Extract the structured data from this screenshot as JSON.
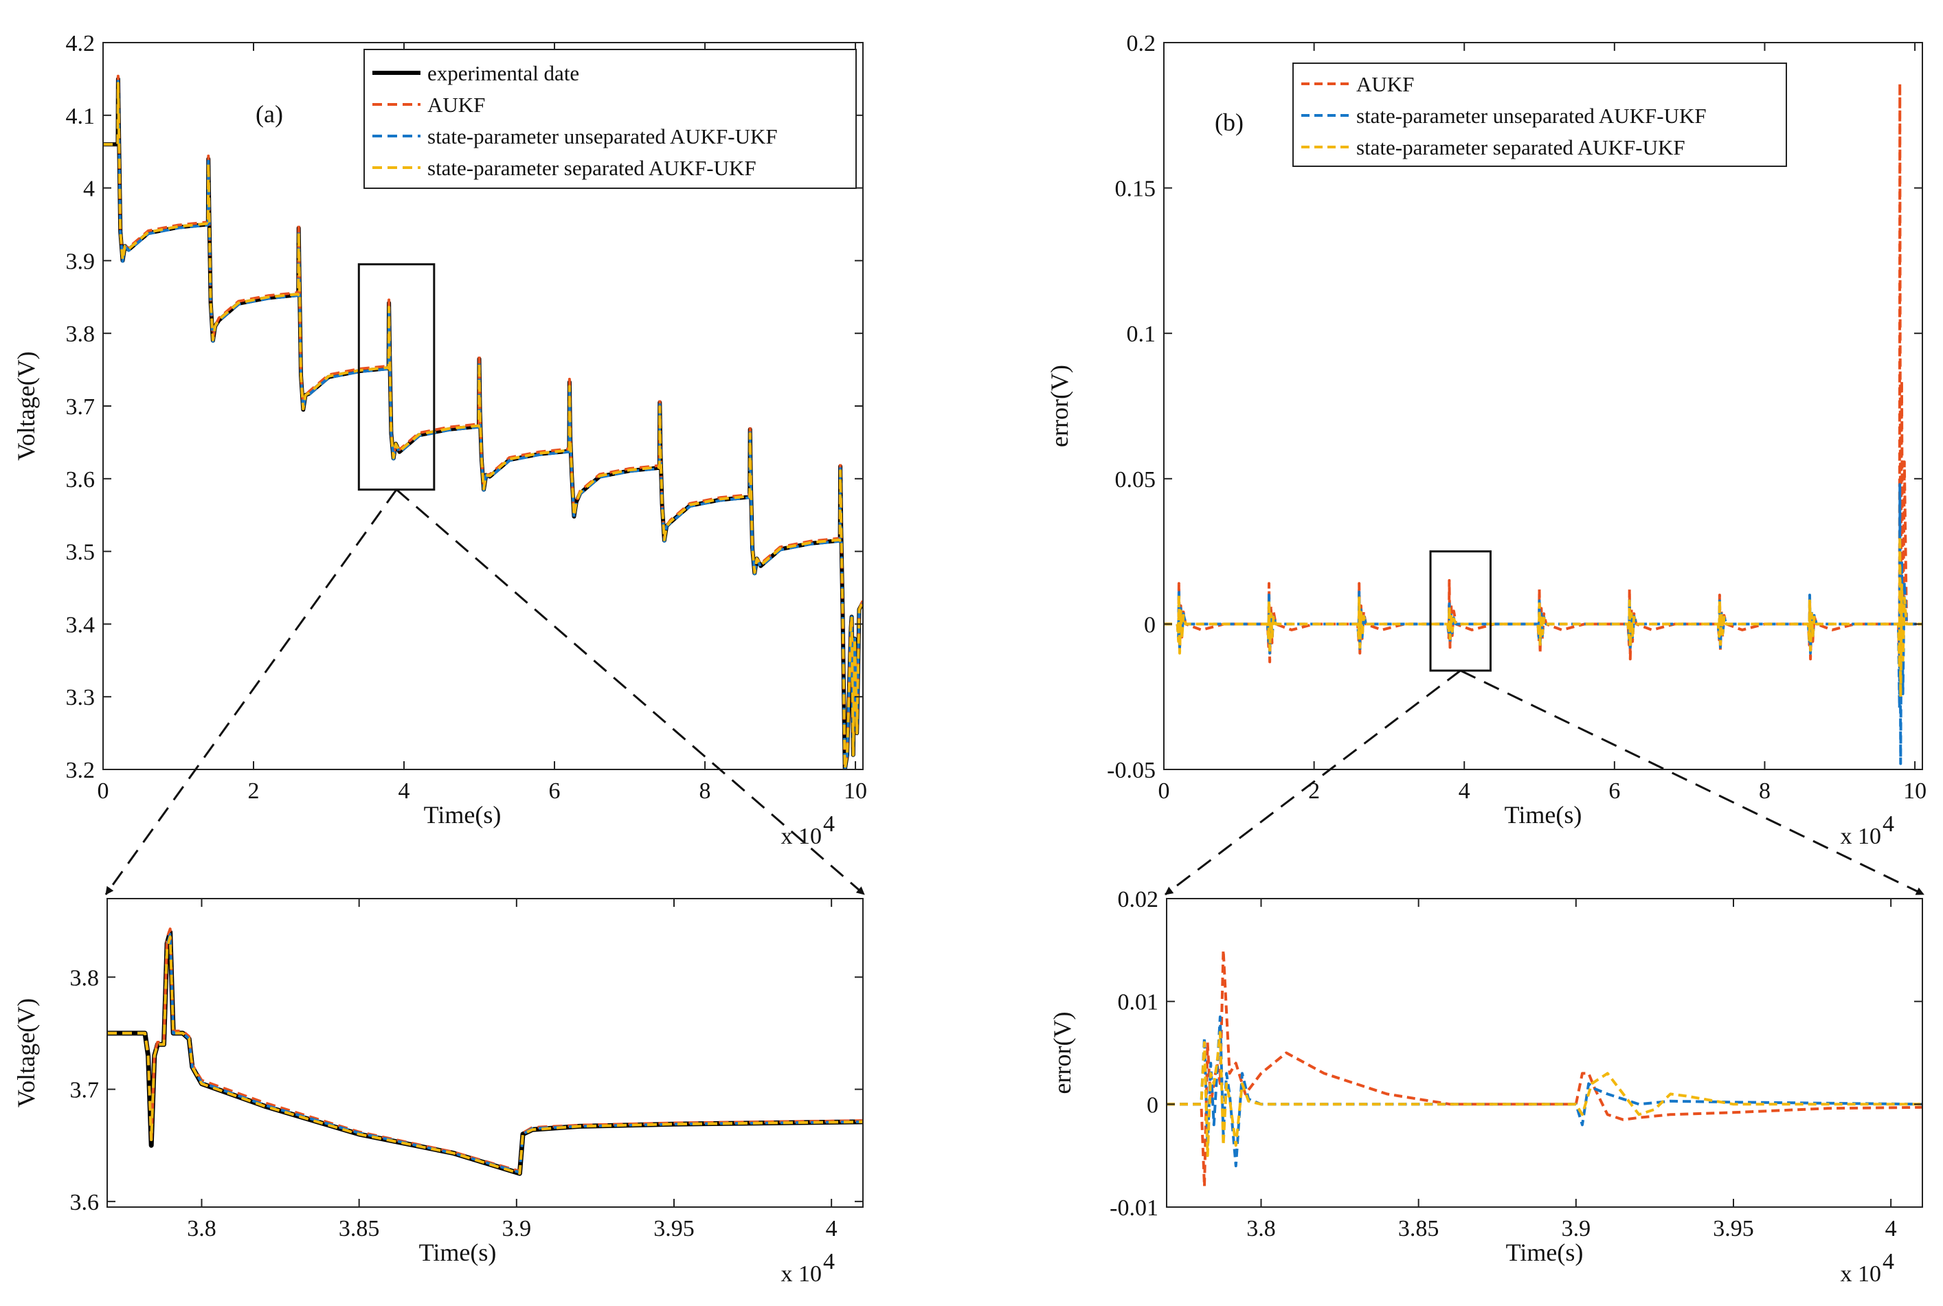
{
  "figure": {
    "panels": {
      "a": "(a)",
      "b": "(b)"
    },
    "exponent": "x 10",
    "exponent_power": "4"
  },
  "colors": {
    "experimental": "#000000",
    "aukf": "#e8501e",
    "unseparated": "#1677c8",
    "separated": "#f2b70d"
  },
  "chart_data": [
    {
      "id": "a-main",
      "type": "line",
      "panel": "(a)",
      "xlabel": "Time(s)",
      "ylabel": "Voltage(V)",
      "xlim": [
        0,
        10.1
      ],
      "ylim": [
        3.2,
        4.2
      ],
      "xticks": [
        0,
        2,
        4,
        6,
        8,
        10
      ],
      "yticks": [
        3.2,
        3.3,
        3.4,
        3.5,
        3.6,
        3.7,
        3.8,
        3.9,
        4.0,
        4.1,
        4.2
      ],
      "ytick_labels": [
        "3.2",
        "3.3",
        "3.4",
        "3.5",
        "3.6",
        "3.7",
        "3.8",
        "3.9",
        "4",
        "4.1",
        "4.2"
      ],
      "x_scale_note": "x 10^4",
      "legend": [
        "experimental date",
        "AUKF",
        "state-parameter unseparated AUKF-UKF",
        "state-parameter separated AUKF-UKF"
      ],
      "legend_position": "top-right",
      "zoom_box": {
        "x": [
          3.4,
          4.4
        ],
        "y": [
          3.585,
          3.895
        ]
      },
      "pulses": [
        {
          "t": 0.2,
          "v_before": 4.06,
          "peak": 4.15,
          "dip": 3.9,
          "v_after": 3.95
        },
        {
          "t": 1.4,
          "v_before": 3.95,
          "peak": 4.04,
          "dip": 3.79,
          "v_after": 3.853
        },
        {
          "t": 2.6,
          "v_before": 3.853,
          "peak": 3.945,
          "dip": 3.695,
          "v_after": 3.752
        },
        {
          "t": 3.8,
          "v_before": 3.752,
          "peak": 3.842,
          "dip": 3.628,
          "v_after": 3.672
        },
        {
          "t": 5.0,
          "v_before": 3.672,
          "peak": 3.765,
          "dip": 3.585,
          "v_after": 3.638
        },
        {
          "t": 6.2,
          "v_before": 3.638,
          "peak": 3.733,
          "dip": 3.548,
          "v_after": 3.615
        },
        {
          "t": 7.4,
          "v_before": 3.615,
          "peak": 3.705,
          "dip": 3.515,
          "v_after": 3.575
        },
        {
          "t": 8.6,
          "v_before": 3.575,
          "peak": 3.668,
          "dip": 3.47,
          "v_after": 3.515
        },
        {
          "t": 9.8,
          "v_before": 3.515,
          "peak": 3.617,
          "dip": 3.2,
          "v_after": 3.43
        }
      ],
      "end_point": {
        "t": 10.1,
        "v": 3.43
      }
    },
    {
      "id": "b-main",
      "type": "line",
      "panel": "(b)",
      "xlabel": "Time(s)",
      "ylabel": "error(V)",
      "xlim": [
        0,
        10.1
      ],
      "ylim": [
        -0.05,
        0.2
      ],
      "xticks": [
        0,
        2,
        4,
        6,
        8,
        10
      ],
      "yticks": [
        -0.05,
        0,
        0.05,
        0.1,
        0.15,
        0.2
      ],
      "ytick_labels": [
        "-0.05",
        "0",
        "0.05",
        "0.1",
        "0.15",
        "0.2"
      ],
      "x_scale_note": "x 10^4",
      "legend": [
        "AUKF",
        "state-parameter unseparated AUKF-UKF",
        "state-parameter separated AUKF-UKF"
      ],
      "legend_position": "top-left",
      "zoom_box": {
        "x": [
          3.55,
          4.35
        ],
        "y": [
          -0.016,
          0.025
        ]
      },
      "error_spikes": [
        {
          "t": 0.2,
          "aukf": [
            0.014,
            -0.009
          ],
          "unsep": [
            0.012,
            -0.008
          ],
          "sep": [
            0.01,
            -0.01
          ]
        },
        {
          "t": 1.4,
          "aukf": [
            0.014,
            -0.013
          ],
          "unsep": [
            0.01,
            -0.01
          ],
          "sep": [
            0.008,
            -0.009
          ]
        },
        {
          "t": 2.6,
          "aukf": [
            0.014,
            -0.01
          ],
          "unsep": [
            0.011,
            -0.009
          ],
          "sep": [
            0.009,
            -0.008
          ]
        },
        {
          "t": 3.8,
          "aukf": [
            0.015,
            -0.008
          ],
          "unsep": [
            0.007,
            -0.006
          ],
          "sep": [
            0.006,
            -0.005
          ]
        },
        {
          "t": 5.0,
          "aukf": [
            0.012,
            -0.01
          ],
          "unsep": [
            0.008,
            -0.008
          ],
          "sep": [
            0.007,
            -0.007
          ]
        },
        {
          "t": 6.2,
          "aukf": [
            0.012,
            -0.012
          ],
          "unsep": [
            0.009,
            -0.009
          ],
          "sep": [
            0.008,
            -0.008
          ]
        },
        {
          "t": 7.4,
          "aukf": [
            0.01,
            -0.009
          ],
          "unsep": [
            0.008,
            -0.008
          ],
          "sep": [
            0.008,
            -0.007
          ]
        },
        {
          "t": 8.6,
          "aukf": [
            0.009,
            -0.012
          ],
          "unsep": [
            0.01,
            -0.01
          ],
          "sep": [
            0.008,
            -0.009
          ]
        },
        {
          "t": 9.8,
          "aukf": [
            0.186,
            -0.02
          ],
          "unsep": [
            0.048,
            -0.048
          ],
          "sep": [
            0.03,
            -0.025
          ]
        }
      ]
    },
    {
      "id": "a-zoom",
      "type": "line",
      "xlabel": "Time(s)",
      "ylabel": "Voltage(V)",
      "xlim": [
        3.77,
        4.01
      ],
      "ylim": [
        3.595,
        3.87
      ],
      "xticks": [
        3.8,
        3.85,
        3.9,
        3.95,
        4.0
      ],
      "xtick_labels": [
        "3.8",
        "3.85",
        "3.9",
        "3.95",
        "4"
      ],
      "yticks": [
        3.6,
        3.7,
        3.8
      ],
      "ytick_labels": [
        "3.6",
        "3.7",
        "3.8"
      ],
      "x_scale_note": "x 10^4",
      "x": [
        3.77,
        3.782,
        3.783,
        3.784,
        3.785,
        3.786,
        3.788,
        3.789,
        3.79,
        3.791,
        3.793,
        3.794,
        3.796,
        3.797,
        3.8,
        3.82,
        3.85,
        3.88,
        3.901,
        3.902,
        3.905,
        3.92,
        3.95,
        4.01
      ],
      "series": [
        {
          "name": "experimental date",
          "values": [
            3.75,
            3.75,
            3.73,
            3.65,
            3.73,
            3.74,
            3.74,
            3.83,
            3.84,
            3.75,
            3.75,
            3.75,
            3.745,
            3.72,
            3.705,
            3.685,
            3.66,
            3.643,
            3.625,
            3.66,
            3.664,
            3.667,
            3.669,
            3.671
          ]
        },
        {
          "name": "AUKF",
          "values": [
            3.75,
            3.75,
            3.732,
            3.652,
            3.732,
            3.742,
            3.742,
            3.835,
            3.843,
            3.752,
            3.752,
            3.752,
            3.747,
            3.722,
            3.708,
            3.688,
            3.662,
            3.644,
            3.627,
            3.661,
            3.666,
            3.668,
            3.67,
            3.672
          ]
        },
        {
          "name": "state-parameter unseparated AUKF-UKF",
          "values": [
            3.75,
            3.75,
            3.73,
            3.655,
            3.73,
            3.74,
            3.74,
            3.828,
            3.838,
            3.75,
            3.75,
            3.75,
            3.745,
            3.72,
            3.706,
            3.686,
            3.661,
            3.643,
            3.626,
            3.66,
            3.665,
            3.667,
            3.669,
            3.671
          ]
        },
        {
          "name": "state-parameter separated AUKF-UKF",
          "values": [
            3.75,
            3.75,
            3.73,
            3.655,
            3.73,
            3.74,
            3.74,
            3.826,
            3.836,
            3.75,
            3.75,
            3.75,
            3.745,
            3.72,
            3.705,
            3.685,
            3.66,
            3.643,
            3.625,
            3.66,
            3.664,
            3.667,
            3.669,
            3.671
          ]
        }
      ]
    },
    {
      "id": "b-zoom",
      "type": "line",
      "xlabel": "Time(s)",
      "ylabel": "error(V)",
      "xlim": [
        3.77,
        4.01
      ],
      "ylim": [
        -0.01,
        0.02
      ],
      "xticks": [
        3.8,
        3.85,
        3.9,
        3.95,
        4.0
      ],
      "xtick_labels": [
        "3.8",
        "3.85",
        "3.9",
        "3.95",
        "4"
      ],
      "yticks": [
        -0.01,
        0,
        0.01,
        0.02
      ],
      "ytick_labels": [
        "-0.01",
        "0",
        "0.01",
        "0.02"
      ],
      "x_scale_note": "x 10^4",
      "series": [
        {
          "name": "AUKF",
          "x": [
            3.77,
            3.781,
            3.782,
            3.783,
            3.784,
            3.785,
            3.786,
            3.787,
            3.788,
            3.789,
            3.79,
            3.792,
            3.795,
            3.8,
            3.808,
            3.82,
            3.84,
            3.86,
            3.9,
            3.902,
            3.904,
            3.906,
            3.91,
            3.915,
            3.92,
            3.93,
            3.95,
            3.98,
            4.01
          ],
          "values": [
            0,
            0,
            -0.008,
            0.006,
            0,
            0.002,
            0.004,
            0.002,
            0.015,
            0.009,
            0.003,
            0.004,
            0.001,
            0.003,
            0.005,
            0.003,
            0.001,
            0,
            0,
            0.003,
            0.003,
            0.0015,
            -0.001,
            -0.0015,
            -0.0013,
            -0.001,
            -0.0008,
            -0.0004,
            -0.0003
          ]
        },
        {
          "name": "state-parameter unseparated AUKF-UKF",
          "x": [
            3.77,
            3.781,
            3.782,
            3.783,
            3.784,
            3.785,
            3.786,
            3.787,
            3.788,
            3.789,
            3.79,
            3.792,
            3.794,
            3.796,
            3.8,
            3.81,
            3.9,
            3.902,
            3.904,
            3.906,
            3.91,
            3.915,
            3.92,
            3.93,
            3.95,
            4.01
          ],
          "values": [
            0,
            0,
            0.0065,
            -0.004,
            0.004,
            -0.002,
            0.003,
            0.0085,
            -0.003,
            0.003,
            0.001,
            -0.006,
            0.003,
            0.0005,
            0,
            0,
            0,
            -0.002,
            0.002,
            0.0015,
            0.001,
            0.0005,
            0,
            0.0003,
            0.0002,
            0
          ]
        },
        {
          "name": "state-parameter separated AUKF-UKF",
          "x": [
            3.77,
            3.781,
            3.782,
            3.783,
            3.784,
            3.785,
            3.786,
            3.787,
            3.788,
            3.789,
            3.79,
            3.792,
            3.794,
            3.796,
            3.8,
            3.81,
            3.9,
            3.902,
            3.905,
            3.91,
            3.915,
            3.92,
            3.925,
            3.93,
            3.935,
            3.95,
            4.01
          ],
          "values": [
            0,
            0,
            0.006,
            -0.005,
            0.003,
            0.002,
            0.004,
            0.007,
            -0.004,
            0.002,
            0.0005,
            -0.004,
            0.002,
            0.0003,
            0,
            0,
            0,
            -0.001,
            0.002,
            0.003,
            0.001,
            -0.001,
            -0.0005,
            0.001,
            0.0008,
            0,
            0
          ]
        }
      ]
    }
  ]
}
